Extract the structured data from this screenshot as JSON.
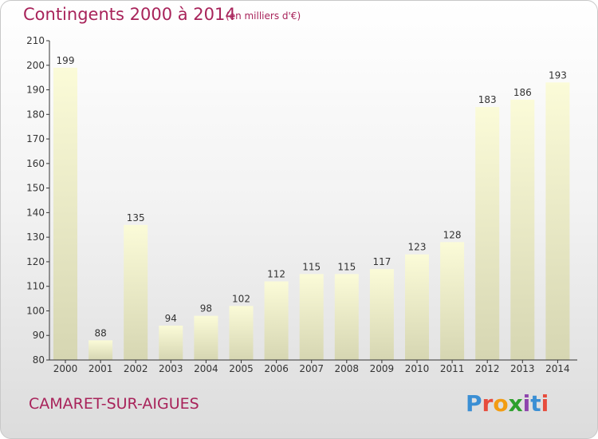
{
  "header": {
    "title": "Contingents 2000 à 2014",
    "subtitle": "(en milliers d'€)"
  },
  "footer": {
    "city": "CAMARET-SUR-AIGUES",
    "brand": "Proxiti"
  },
  "colors": {
    "title": "#a8235a",
    "bar_top": "#fbfbd8",
    "bar_bottom": "#d6d6b2"
  },
  "chart_data": {
    "type": "bar",
    "categories": [
      "2000",
      "2001",
      "2002",
      "2003",
      "2004",
      "2005",
      "2006",
      "2007",
      "2008",
      "2009",
      "2010",
      "2011",
      "2012",
      "2013",
      "2014"
    ],
    "values": [
      199,
      88,
      135,
      94,
      98,
      102,
      112,
      115,
      115,
      117,
      123,
      128,
      183,
      186,
      193
    ],
    "ylim": [
      80,
      210
    ],
    "yticks": [
      80,
      90,
      100,
      110,
      120,
      130,
      140,
      150,
      160,
      170,
      180,
      190,
      200,
      210
    ],
    "grid": false,
    "data_labels": true
  }
}
